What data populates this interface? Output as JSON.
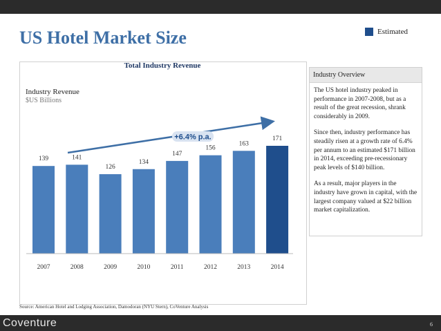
{
  "title": "US Hotel Market Size",
  "legend": {
    "label": "Estimated",
    "color": "#1f4e8c"
  },
  "chart_data": {
    "type": "bar",
    "title": "Total Industry Revenue",
    "ylabel": "Industry Revenue",
    "units": "$US Billions",
    "categories": [
      "2007",
      "2008",
      "2009",
      "2010",
      "2011",
      "2012",
      "2013",
      "2014"
    ],
    "values": [
      139,
      141,
      126,
      134,
      147,
      156,
      163,
      171
    ],
    "data_labels": [
      "139",
      "141",
      "126",
      "134",
      "147",
      "156",
      "163",
      "171"
    ],
    "estimated": [
      false,
      false,
      false,
      false,
      false,
      false,
      false,
      true
    ],
    "ylim": [
      0,
      200
    ],
    "grid": false,
    "annotation": "+6.4% p.a.",
    "colors": {
      "actual": "#4a7ebb",
      "estimated": "#1f4e8c"
    }
  },
  "overview": {
    "heading": "Industry Overview",
    "paragraphs": [
      "The US hotel industry peaked in performance in 2007-2008, but as a result of the great recession, shrank considerably in 2009.",
      "Since then, industry performance has steadily risen at a growth rate of 6.4% per annum to an estimated $171 billion in 2014, exceeding pre-recessionary peak levels of $140 billion.",
      "As a result, major players in the industry have grown in capital, with the largest company valued at $22 billion market capitalization."
    ]
  },
  "source": "Source: American Hotel and Lodging Association, Damodoran (NYU Stern), CoVenture Analysis",
  "footer": {
    "logo": "Coventure",
    "page_number": "6"
  }
}
